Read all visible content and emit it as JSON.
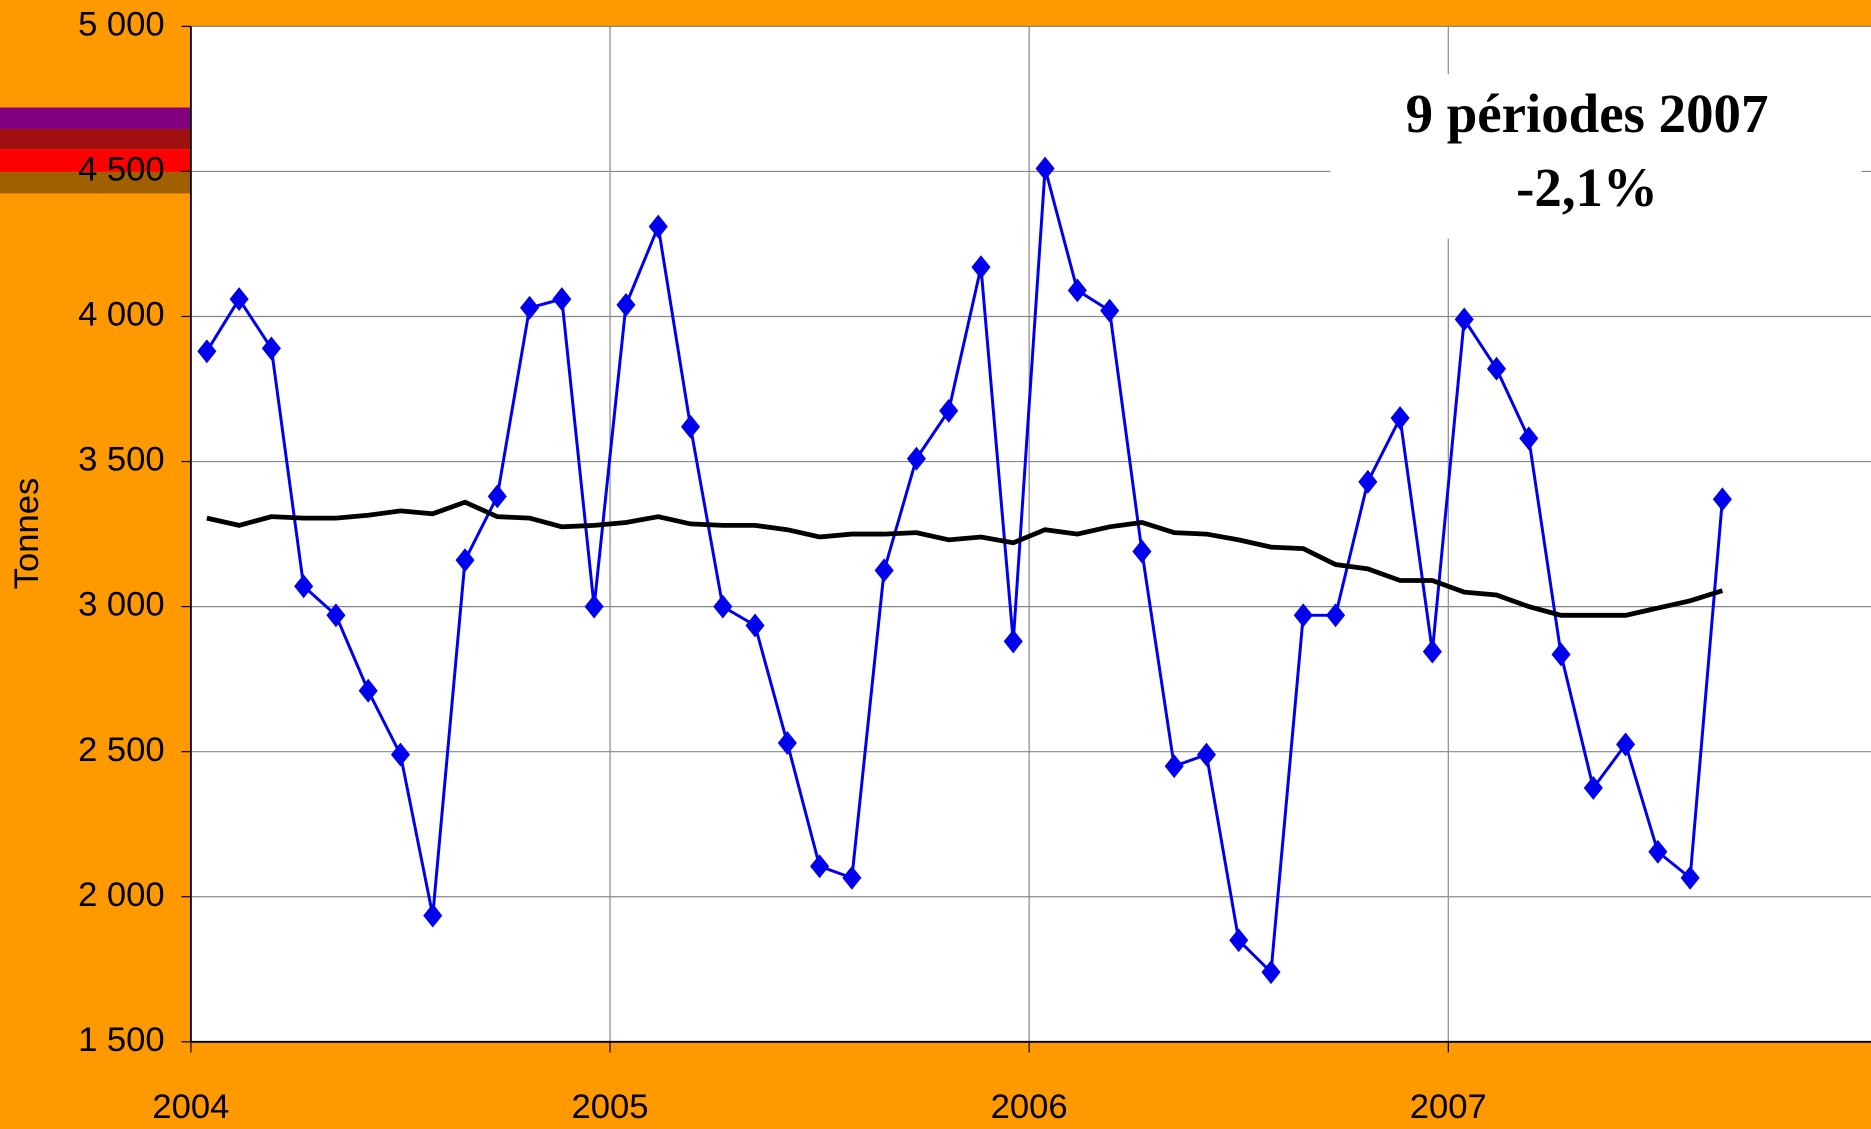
{
  "chart_data": {
    "type": "line",
    "y_label": "Tonnes",
    "annotation": [
      "9 périodes 2007",
      "-2,1%"
    ],
    "x": [
      2004.038,
      2004.115,
      2004.192,
      2004.269,
      2004.346,
      2004.423,
      2004.5,
      2004.577,
      2004.654,
      2004.731,
      2004.808,
      2004.885,
      2004.962,
      2005.038,
      2005.115,
      2005.192,
      2005.269,
      2005.346,
      2005.423,
      2005.5,
      2005.577,
      2005.654,
      2005.731,
      2005.808,
      2005.885,
      2005.962,
      2006.038,
      2006.115,
      2006.192,
      2006.269,
      2006.346,
      2006.423,
      2006.5,
      2006.577,
      2006.654,
      2006.731,
      2006.808,
      2006.885,
      2006.962,
      2007.038,
      2007.115,
      2007.192,
      2007.269,
      2007.346,
      2007.423,
      2007.5,
      2007.577,
      2007.654
    ],
    "series": [
      {
        "color": "#0000ee",
        "marker": "diamond",
        "values": [
          3880,
          4060,
          3890,
          3070,
          2970,
          2710,
          2490,
          1935,
          3160,
          3380,
          4030,
          4060,
          3000,
          4040,
          4310,
          3620,
          3000,
          2935,
          2530,
          2105,
          2065,
          3125,
          3510,
          3675,
          4170,
          2880,
          4510,
          4090,
          4020,
          3190,
          2450,
          2490,
          1850,
          1740,
          2970,
          2970,
          3430,
          3650,
          2845,
          3990,
          3820,
          3580,
          2835,
          2375,
          2525,
          2155,
          2065,
          3370
        ]
      },
      {
        "color": "#000000",
        "values": [
          3305,
          3280,
          3310,
          3305,
          3305,
          3315,
          3330,
          3320,
          3360,
          3310,
          3305,
          3275,
          3280,
          3290,
          3310,
          3285,
          3280,
          3280,
          3265,
          3240,
          3250,
          3250,
          3255,
          3230,
          3240,
          3220,
          3265,
          3250,
          3275,
          3290,
          3255,
          3250,
          3230,
          3205,
          3200,
          3145,
          3130,
          3090,
          3090,
          3050,
          3040,
          3000,
          2970,
          2970,
          2970,
          2995,
          3020,
          3055
        ]
      }
    ],
    "xlim": [
      2004,
      2008
    ],
    "xticks": [
      2004,
      2005,
      2006,
      2007
    ],
    "ylim": [
      1500,
      5000
    ],
    "yticks": [
      {
        "value": 1500,
        "label": "1 500"
      },
      {
        "value": 2000,
        "label": "2 000"
      },
      {
        "value": 2500,
        "label": "2 500"
      },
      {
        "value": 3000,
        "label": "3 000"
      },
      {
        "value": 3500,
        "label": "3 500"
      },
      {
        "value": 4000,
        "label": "4 000"
      },
      {
        "value": 4500,
        "label": "4 500"
      },
      {
        "value": 5000,
        "label": "5 000"
      }
    ],
    "grid": true
  }
}
